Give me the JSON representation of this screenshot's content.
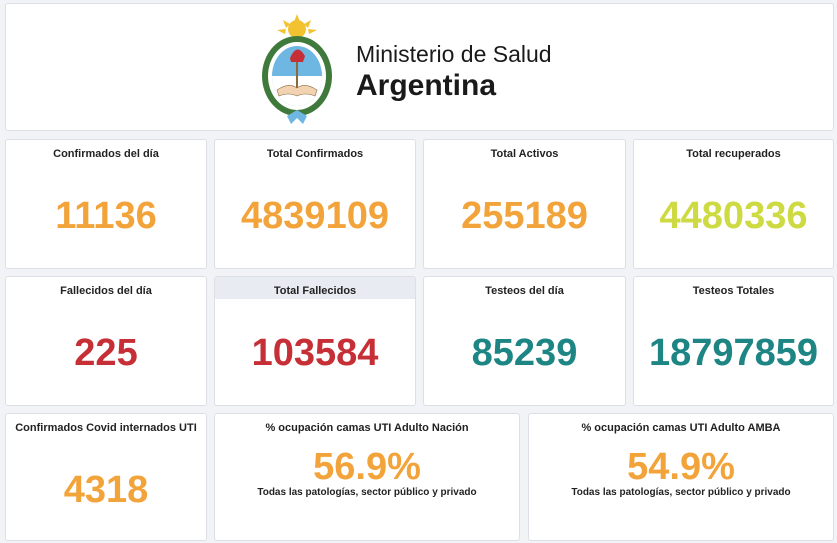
{
  "header": {
    "ministry_line1": "Ministerio de Salud",
    "ministry_line2": "Argentina"
  },
  "colors": {
    "orange": "#f2a33a",
    "lime": "#cdda41",
    "red": "#c62f36",
    "teal": "#1d8584"
  },
  "stats": {
    "confirmados_dia": {
      "label": "Confirmados del día",
      "value": "11136"
    },
    "total_confirmados": {
      "label": "Total Confirmados",
      "value": "4839109"
    },
    "total_activos": {
      "label": "Total Activos",
      "value": "255189"
    },
    "total_recuperados": {
      "label": "Total recuperados",
      "value": "4480336"
    },
    "fallecidos_dia": {
      "label": "Fallecidos del día",
      "value": "225"
    },
    "total_fallecidos": {
      "label": "Total Fallecidos",
      "value": "103584"
    },
    "testeos_dia": {
      "label": "Testeos del día",
      "value": "85239"
    },
    "testeos_totales": {
      "label": "Testeos Totales",
      "value": "18797859"
    },
    "internados_uti": {
      "label": "Confirmados Covid internados UTI",
      "value": "4318"
    },
    "ocupacion_nacion": {
      "label": "% ocupación camas UTI Adulto Nación",
      "value": "56.9%",
      "note": "Todas las patologías, sector público y privado"
    },
    "ocupacion_amba": {
      "label": "% ocupación camas UTI Adulto AMBA",
      "value": "54.9%",
      "note": "Todas las patologías, sector público y privado"
    }
  }
}
